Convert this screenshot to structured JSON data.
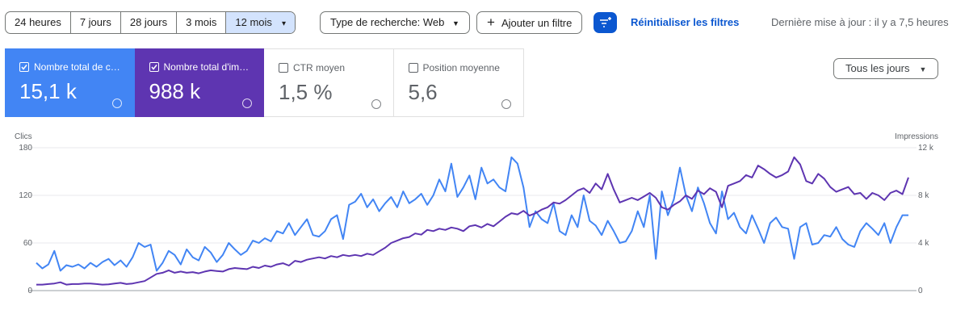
{
  "toolbar": {
    "ranges": [
      "24 heures",
      "7 jours",
      "28 jours",
      "3 mois",
      "12 mois"
    ],
    "selected_range": 4,
    "search_type": "Type de recherche: Web",
    "add_filter": "Ajouter un filtre",
    "reset": "Réinitialiser les filtres",
    "last_update": "Dernière mise à jour : il y a 7,5 heures"
  },
  "metrics": [
    {
      "label": "Nombre total de c…",
      "value": "15,1 k",
      "checked": true,
      "color": "#4285f4"
    },
    {
      "label": "Nombre total d'im…",
      "value": "988 k",
      "checked": true,
      "color": "#5e35b1"
    },
    {
      "label": "CTR moyen",
      "value": "1,5 %",
      "checked": false,
      "color": "#ffffff"
    },
    {
      "label": "Position moyenne",
      "value": "5,6",
      "checked": false,
      "color": "#ffffff"
    }
  ],
  "days_selector": "Tous les jours",
  "chart_data": {
    "type": "line",
    "grid": true,
    "ylim": [
      0,
      180
    ],
    "yticks": [
      0,
      60,
      120,
      180
    ],
    "y2lim": [
      0,
      12000
    ],
    "y2ticks": [
      0,
      {
        "value": 4000,
        "label": "4 k"
      },
      {
        "value": 8000,
        "label": "8 k"
      },
      {
        "value": 12000,
        "label": "12 k"
      }
    ],
    "series": [
      {
        "name": "Clics",
        "color": "#4285f4",
        "values": [
          35,
          28,
          33,
          50,
          25,
          32,
          30,
          33,
          28,
          35,
          30,
          36,
          40,
          32,
          38,
          30,
          42,
          60,
          55,
          58,
          25,
          35,
          50,
          45,
          33,
          52,
          42,
          38,
          55,
          48,
          36,
          45,
          60,
          52,
          45,
          50,
          63,
          60,
          66,
          62,
          75,
          72,
          85,
          70,
          80,
          90,
          70,
          68,
          75,
          90,
          95,
          65,
          108,
          112,
          122,
          105,
          115,
          100,
          110,
          118,
          105,
          125,
          110,
          115,
          122,
          108,
          120,
          140,
          125,
          160,
          118,
          130,
          145,
          115,
          155,
          135,
          140,
          130,
          125,
          168,
          160,
          130,
          80,
          100,
          90,
          85,
          110,
          75,
          70,
          95,
          80,
          120,
          88,
          82,
          70,
          88,
          75,
          60,
          62,
          75,
          100,
          80,
          120,
          40,
          125,
          95,
          115,
          155,
          120,
          100,
          130,
          110,
          85,
          72,
          125,
          90,
          98,
          80,
          72,
          95,
          78,
          60,
          85,
          92,
          80,
          78,
          40,
          80,
          85,
          58,
          60,
          70,
          68,
          80,
          65,
          58,
          55,
          75,
          85,
          78,
          70,
          85,
          60,
          80,
          95,
          95
        ]
      },
      {
        "name": "Impressions",
        "color": "#5e35b1",
        "axis": "y2",
        "values": [
          500,
          500,
          550,
          600,
          700,
          500,
          550,
          550,
          600,
          600,
          550,
          500,
          520,
          600,
          650,
          550,
          600,
          700,
          800,
          1100,
          1400,
          1500,
          1700,
          1500,
          1600,
          1500,
          1550,
          1450,
          1600,
          1700,
          1650,
          1600,
          1800,
          1900,
          1850,
          1800,
          2000,
          1900,
          2100,
          2000,
          2200,
          2300,
          2100,
          2500,
          2400,
          2600,
          2700,
          2800,
          2700,
          2900,
          2800,
          3000,
          2900,
          3000,
          2900,
          3100,
          3000,
          3300,
          3600,
          4000,
          4200,
          4400,
          4500,
          4800,
          4700,
          5100,
          5000,
          5200,
          5100,
          5300,
          5200,
          5000,
          5400,
          5500,
          5300,
          5600,
          5400,
          5800,
          6200,
          6500,
          6400,
          6700,
          6300,
          6500,
          6800,
          7000,
          7400,
          7300,
          7600,
          8000,
          8400,
          8600,
          8200,
          9000,
          8500,
          9800,
          8500,
          7400,
          7600,
          7800,
          7600,
          7900,
          8200,
          7800,
          7000,
          6800,
          7200,
          7500,
          8000,
          7700,
          8400,
          8100,
          8600,
          8300,
          7000,
          8800,
          9000,
          9200,
          9700,
          9500,
          10500,
          10200,
          9800,
          9500,
          9700,
          10000,
          11200,
          10600,
          9200,
          9000,
          9800,
          9400,
          8700,
          8300,
          8500,
          8700,
          8100,
          8200,
          7700,
          8200,
          8000,
          7600,
          8200,
          8400,
          8100,
          9500
        ]
      }
    ]
  }
}
